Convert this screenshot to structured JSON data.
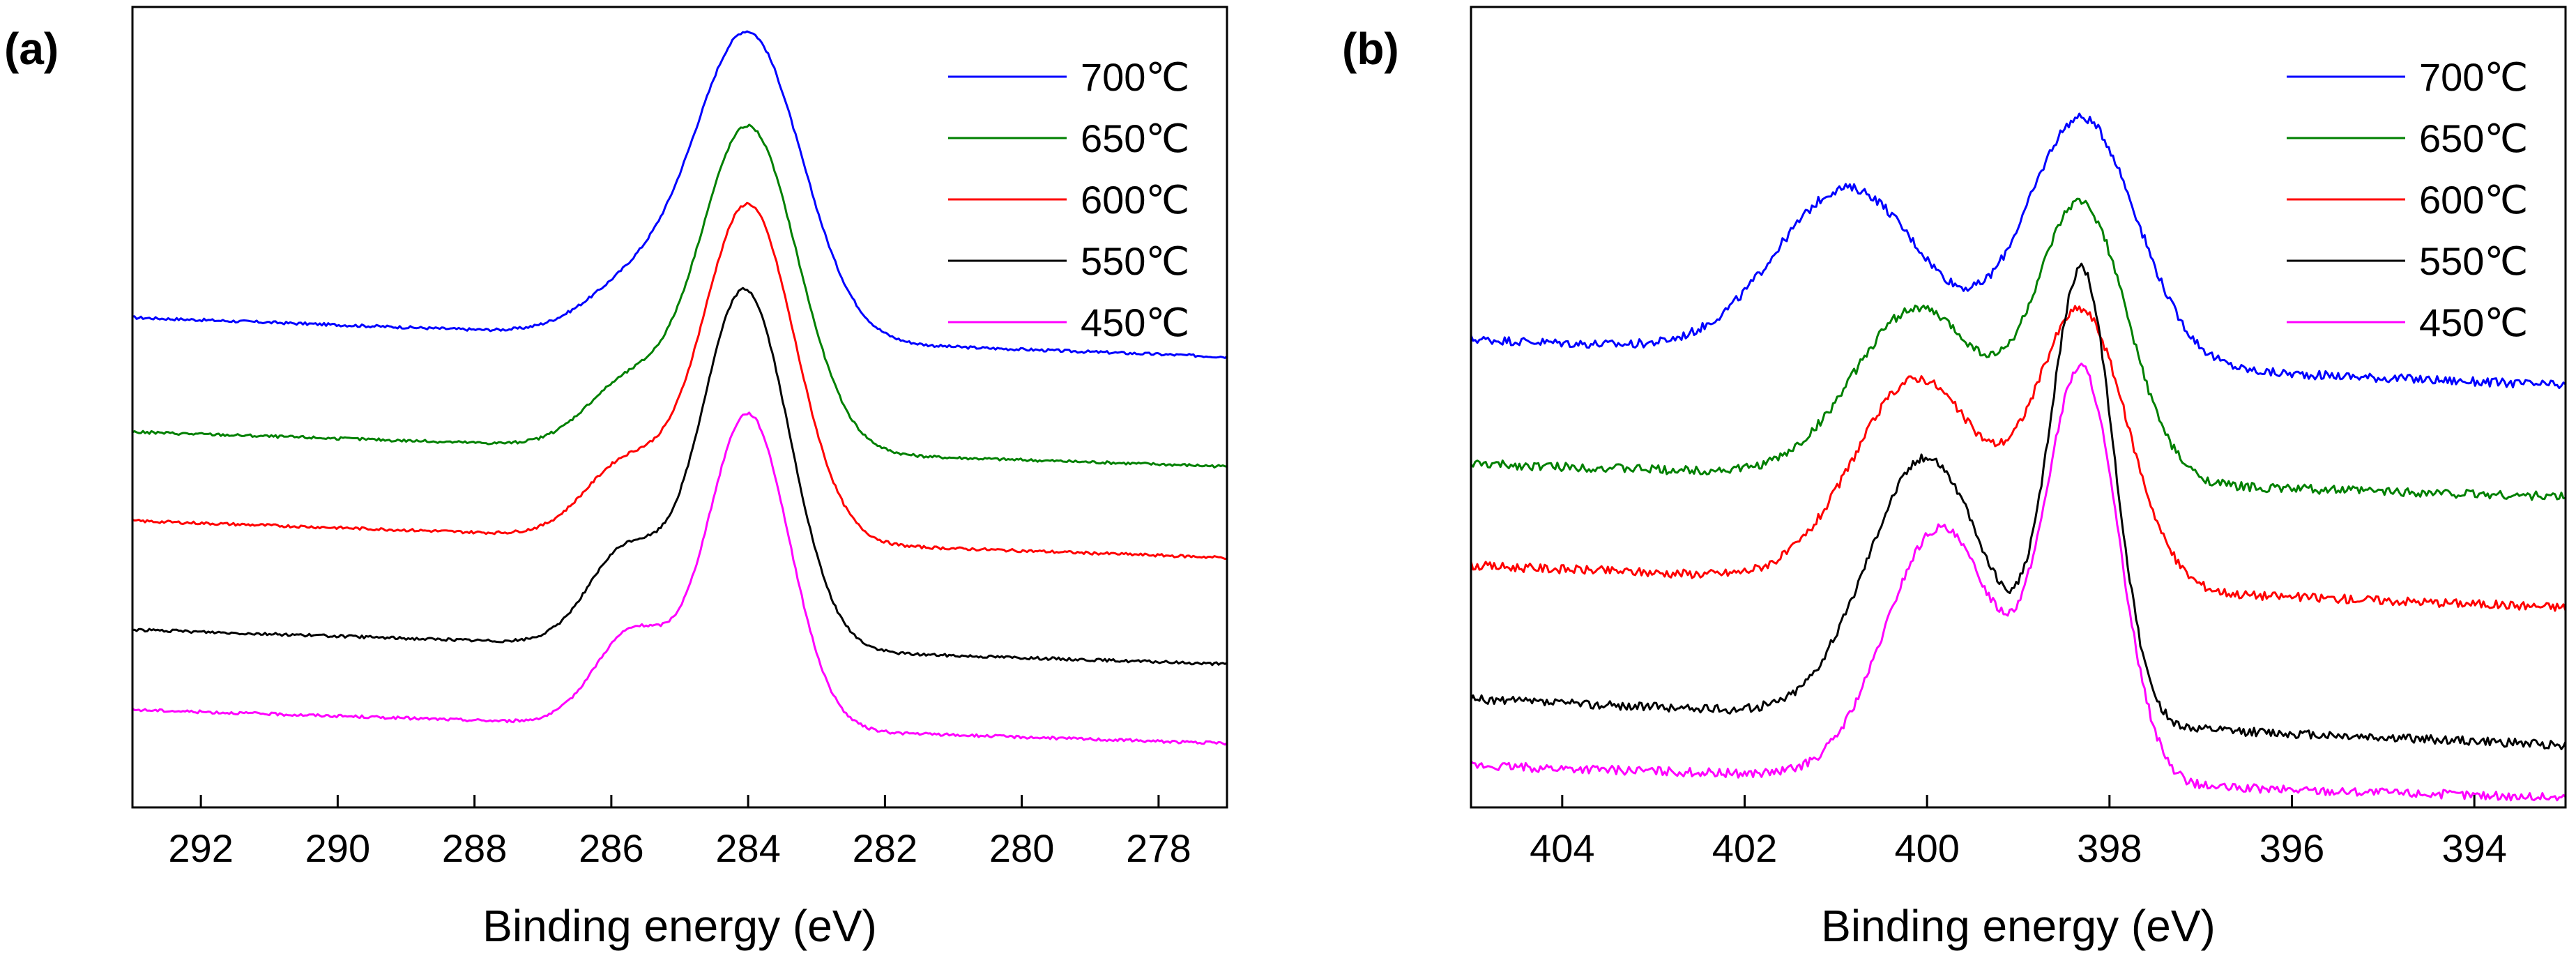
{
  "chart_data": [
    {
      "type": "line",
      "panel_label": "(a)",
      "xlabel": "Binding energy (eV)",
      "ylabel": "",
      "x_reversed": true,
      "xlim": [
        293,
        277
      ],
      "ylim": [
        0,
        100
      ],
      "ytick_labels_shown": false,
      "xticks": [
        292,
        290,
        288,
        286,
        284,
        282,
        280,
        278
      ],
      "xtick_labels": [
        "292",
        "290",
        "288",
        "286",
        "284",
        "282",
        "280",
        "278"
      ],
      "legend_position": "top-right",
      "series": [
        {
          "name": "700℃",
          "color": "#0000ff",
          "baseline_left": 61.2,
          "baseline_right": 56.3,
          "peaks": [
            {
              "center": 284.0,
              "height": 38.2,
              "width": 0.78
            },
            {
              "center": 285.7,
              "height": 6.0,
              "width": 0.7
            }
          ]
        },
        {
          "name": "650℃",
          "color": "#008000",
          "baseline_left": 46.9,
          "baseline_right": 42.6,
          "peaks": [
            {
              "center": 284.0,
              "height": 40.6,
              "width": 0.72
            },
            {
              "center": 285.8,
              "height": 7.5,
              "width": 0.6
            }
          ]
        },
        {
          "name": "600℃",
          "color": "#ff0000",
          "baseline_left": 35.8,
          "baseline_right": 31.2,
          "peaks": [
            {
              "center": 284.0,
              "height": 42.1,
              "width": 0.68
            },
            {
              "center": 285.8,
              "height": 9.0,
              "width": 0.6
            }
          ]
        },
        {
          "name": "550℃",
          "color": "#000000",
          "baseline_left": 22.2,
          "baseline_right": 17.9,
          "peaks": [
            {
              "center": 284.05,
              "height": 44.9,
              "width": 0.65
            },
            {
              "center": 285.8,
              "height": 11.5,
              "width": 0.55
            }
          ]
        },
        {
          "name": "450℃",
          "color": "#ff00ff",
          "baseline_left": 12.2,
          "baseline_right": 8.0,
          "peaks": [
            {
              "center": 284.0,
              "height": 39.3,
              "width": 0.6
            },
            {
              "center": 285.7,
              "height": 11.5,
              "width": 0.55
            }
          ]
        }
      ]
    },
    {
      "type": "line",
      "panel_label": "(b)",
      "xlabel": "Binding energy (eV)",
      "ylabel": "",
      "x_reversed": true,
      "xlim": [
        405,
        393
      ],
      "ylim": [
        0,
        100
      ],
      "ytick_labels_shown": false,
      "xticks": [
        404,
        402,
        400,
        398,
        396,
        394
      ],
      "xtick_labels": [
        "404",
        "402",
        "400",
        "398",
        "396",
        "394"
      ],
      "legend_position": "top-right",
      "series": [
        {
          "name": "700℃",
          "color": "#0000ff",
          "baseline_left": 58.5,
          "baseline_right": 52.7,
          "peaks": [
            {
              "center": 400.85,
              "height": 20.9,
              "width": 0.8
            },
            {
              "center": 398.3,
              "height": 30.8,
              "width": 0.6
            }
          ]
        },
        {
          "name": "650℃",
          "color": "#008000",
          "baseline_left": 42.9,
          "baseline_right": 38.8,
          "peaks": [
            {
              "center": 400.1,
              "height": 21.1,
              "width": 0.7
            },
            {
              "center": 398.3,
              "height": 34.2,
              "width": 0.5
            }
          ]
        },
        {
          "name": "600℃",
          "color": "#ff0000",
          "baseline_left": 30.2,
          "baseline_right": 25.0,
          "peaks": [
            {
              "center": 400.1,
              "height": 25.5,
              "width": 0.7
            },
            {
              "center": 398.3,
              "height": 34.0,
              "width": 0.5
            }
          ]
        },
        {
          "name": "550℃",
          "color": "#000000",
          "baseline_left": 13.5,
          "baseline_right": 7.8,
          "peaks": [
            {
              "center": 400.0,
              "height": 32.6,
              "width": 0.65
            },
            {
              "center": 398.3,
              "height": 56.0,
              "width": 0.35
            }
          ]
        },
        {
          "name": "450℃",
          "color": "#ff00ff",
          "baseline_left": 5.2,
          "baseline_right": 1.2,
          "peaks": [
            {
              "center": 399.85,
              "height": 31.4,
              "width": 0.6
            },
            {
              "center": 398.3,
              "height": 51.0,
              "width": 0.4
            }
          ]
        }
      ]
    }
  ]
}
